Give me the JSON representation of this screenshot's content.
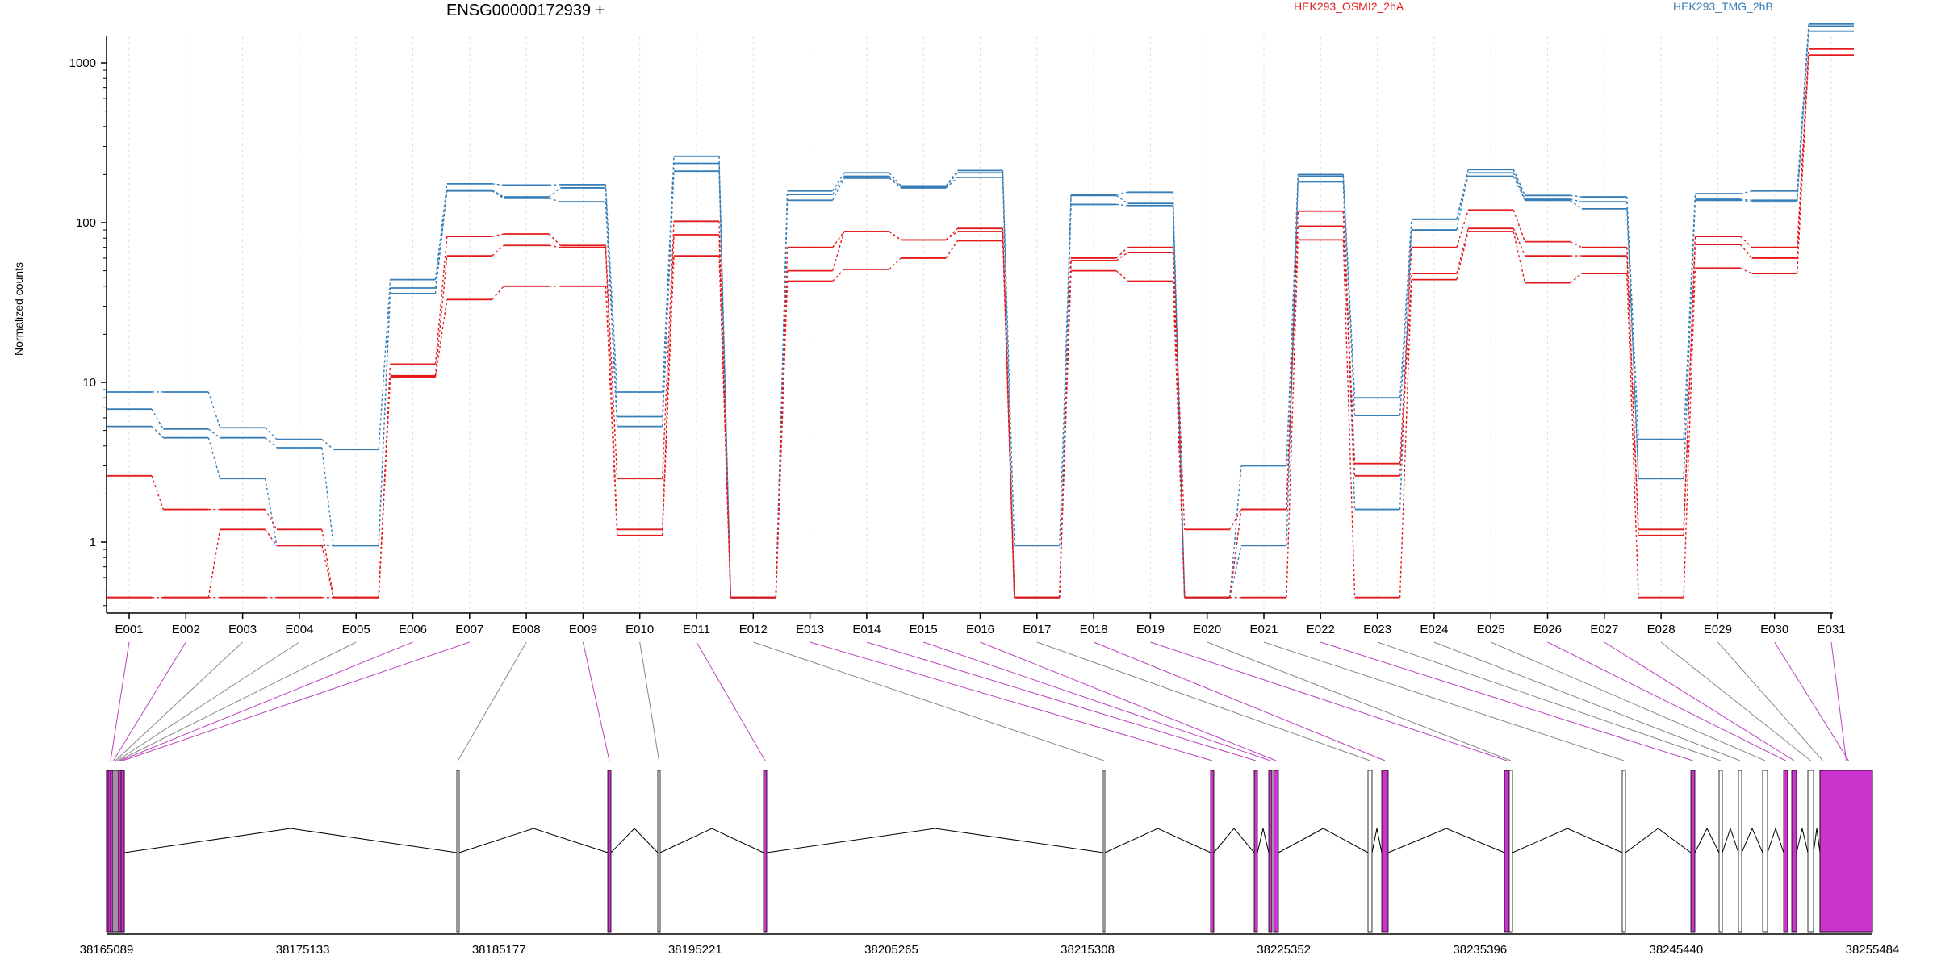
{
  "page": {
    "title": "ENSG00000172939 +",
    "legend": [
      {
        "name": "HEK293_OSMI2_2hA",
        "color": "#e41a1c"
      },
      {
        "name": "HEK293_TMG_2hB",
        "color": "#377eb8"
      }
    ]
  },
  "chart_data": {
    "type": "line",
    "ylabel": "Normalized counts",
    "yscale": "log",
    "y_ticks": [
      "1",
      "10",
      "100",
      "1000"
    ],
    "categories": [
      "E001",
      "E002",
      "E003",
      "E004",
      "E005",
      "E006",
      "E007",
      "E008",
      "E009",
      "E010",
      "E011",
      "E012",
      "E013",
      "E014",
      "E015",
      "E016",
      "E017",
      "E018",
      "E019",
      "E020",
      "E021",
      "E022",
      "E023",
      "E024",
      "E025",
      "E026",
      "E027",
      "E028",
      "E029",
      "E030",
      "E031"
    ],
    "series": [
      {
        "color": "#377eb8",
        "values": [
          8.7,
          8.7,
          5.2,
          4.4,
          3.8,
          44,
          175,
          172,
          173,
          8.7,
          260,
          0.45,
          158,
          205,
          170,
          212,
          0.95,
          150,
          155,
          0.45,
          3.0,
          200,
          8.0,
          105,
          215,
          148,
          145,
          4.4,
          152,
          158,
          1750
        ]
      },
      {
        "color": "#377eb8",
        "values": [
          6.8,
          5.1,
          4.5,
          3.9,
          0.95,
          39,
          160,
          145,
          165,
          6.1,
          235,
          0.45,
          150,
          195,
          168,
          205,
          0.45,
          148,
          132,
          0.45,
          1.6,
          195,
          6.2,
          90,
          205,
          140,
          135,
          2.5,
          140,
          138,
          1700
        ]
      },
      {
        "color": "#377eb8",
        "values": [
          5.3,
          4.5,
          2.5,
          0.95,
          0.95,
          36,
          158,
          142,
          135,
          5.3,
          210,
          0.45,
          138,
          190,
          165,
          192,
          0.45,
          130,
          128,
          0.45,
          0.95,
          180,
          1.6,
          105,
          195,
          138,
          122,
          2.5,
          138,
          135,
          1580
        ]
      },
      {
        "color": "#e41a1c",
        "values": [
          2.6,
          1.6,
          1.6,
          1.2,
          0.45,
          13,
          82,
          85,
          72,
          2.5,
          102,
          0.45,
          70,
          88,
          78,
          92,
          0.45,
          60,
          70,
          1.2,
          1.6,
          118,
          3.1,
          70,
          120,
          76,
          70,
          1.2,
          82,
          70,
          1220
        ]
      },
      {
        "color": "#e41a1c",
        "values": [
          0.45,
          0.45,
          1.2,
          0.95,
          0.45,
          11,
          62,
          72,
          70,
          1.2,
          84,
          0.45,
          50,
          88,
          78,
          88,
          0.45,
          58,
          65,
          0.45,
          1.6,
          95,
          2.6,
          48,
          92,
          62,
          62,
          1.1,
          73,
          60,
          1120
        ]
      },
      {
        "color": "#e41a1c",
        "values": [
          0.45,
          0.45,
          0.45,
          0.45,
          0.45,
          10.8,
          33,
          40,
          40,
          1.1,
          62,
          0.45,
          43,
          51,
          60,
          77,
          0.45,
          50,
          43,
          0.45,
          0.45,
          78,
          0.45,
          44,
          88,
          42,
          48,
          0.45,
          52,
          48,
          1120
        ]
      }
    ],
    "gene_model": {
      "coord_ticks": [
        "38165089",
        "38175133",
        "38185177",
        "38195221",
        "38205265",
        "38215308",
        "38225352",
        "38235396",
        "38245440",
        "38255484"
      ]
    }
  }
}
